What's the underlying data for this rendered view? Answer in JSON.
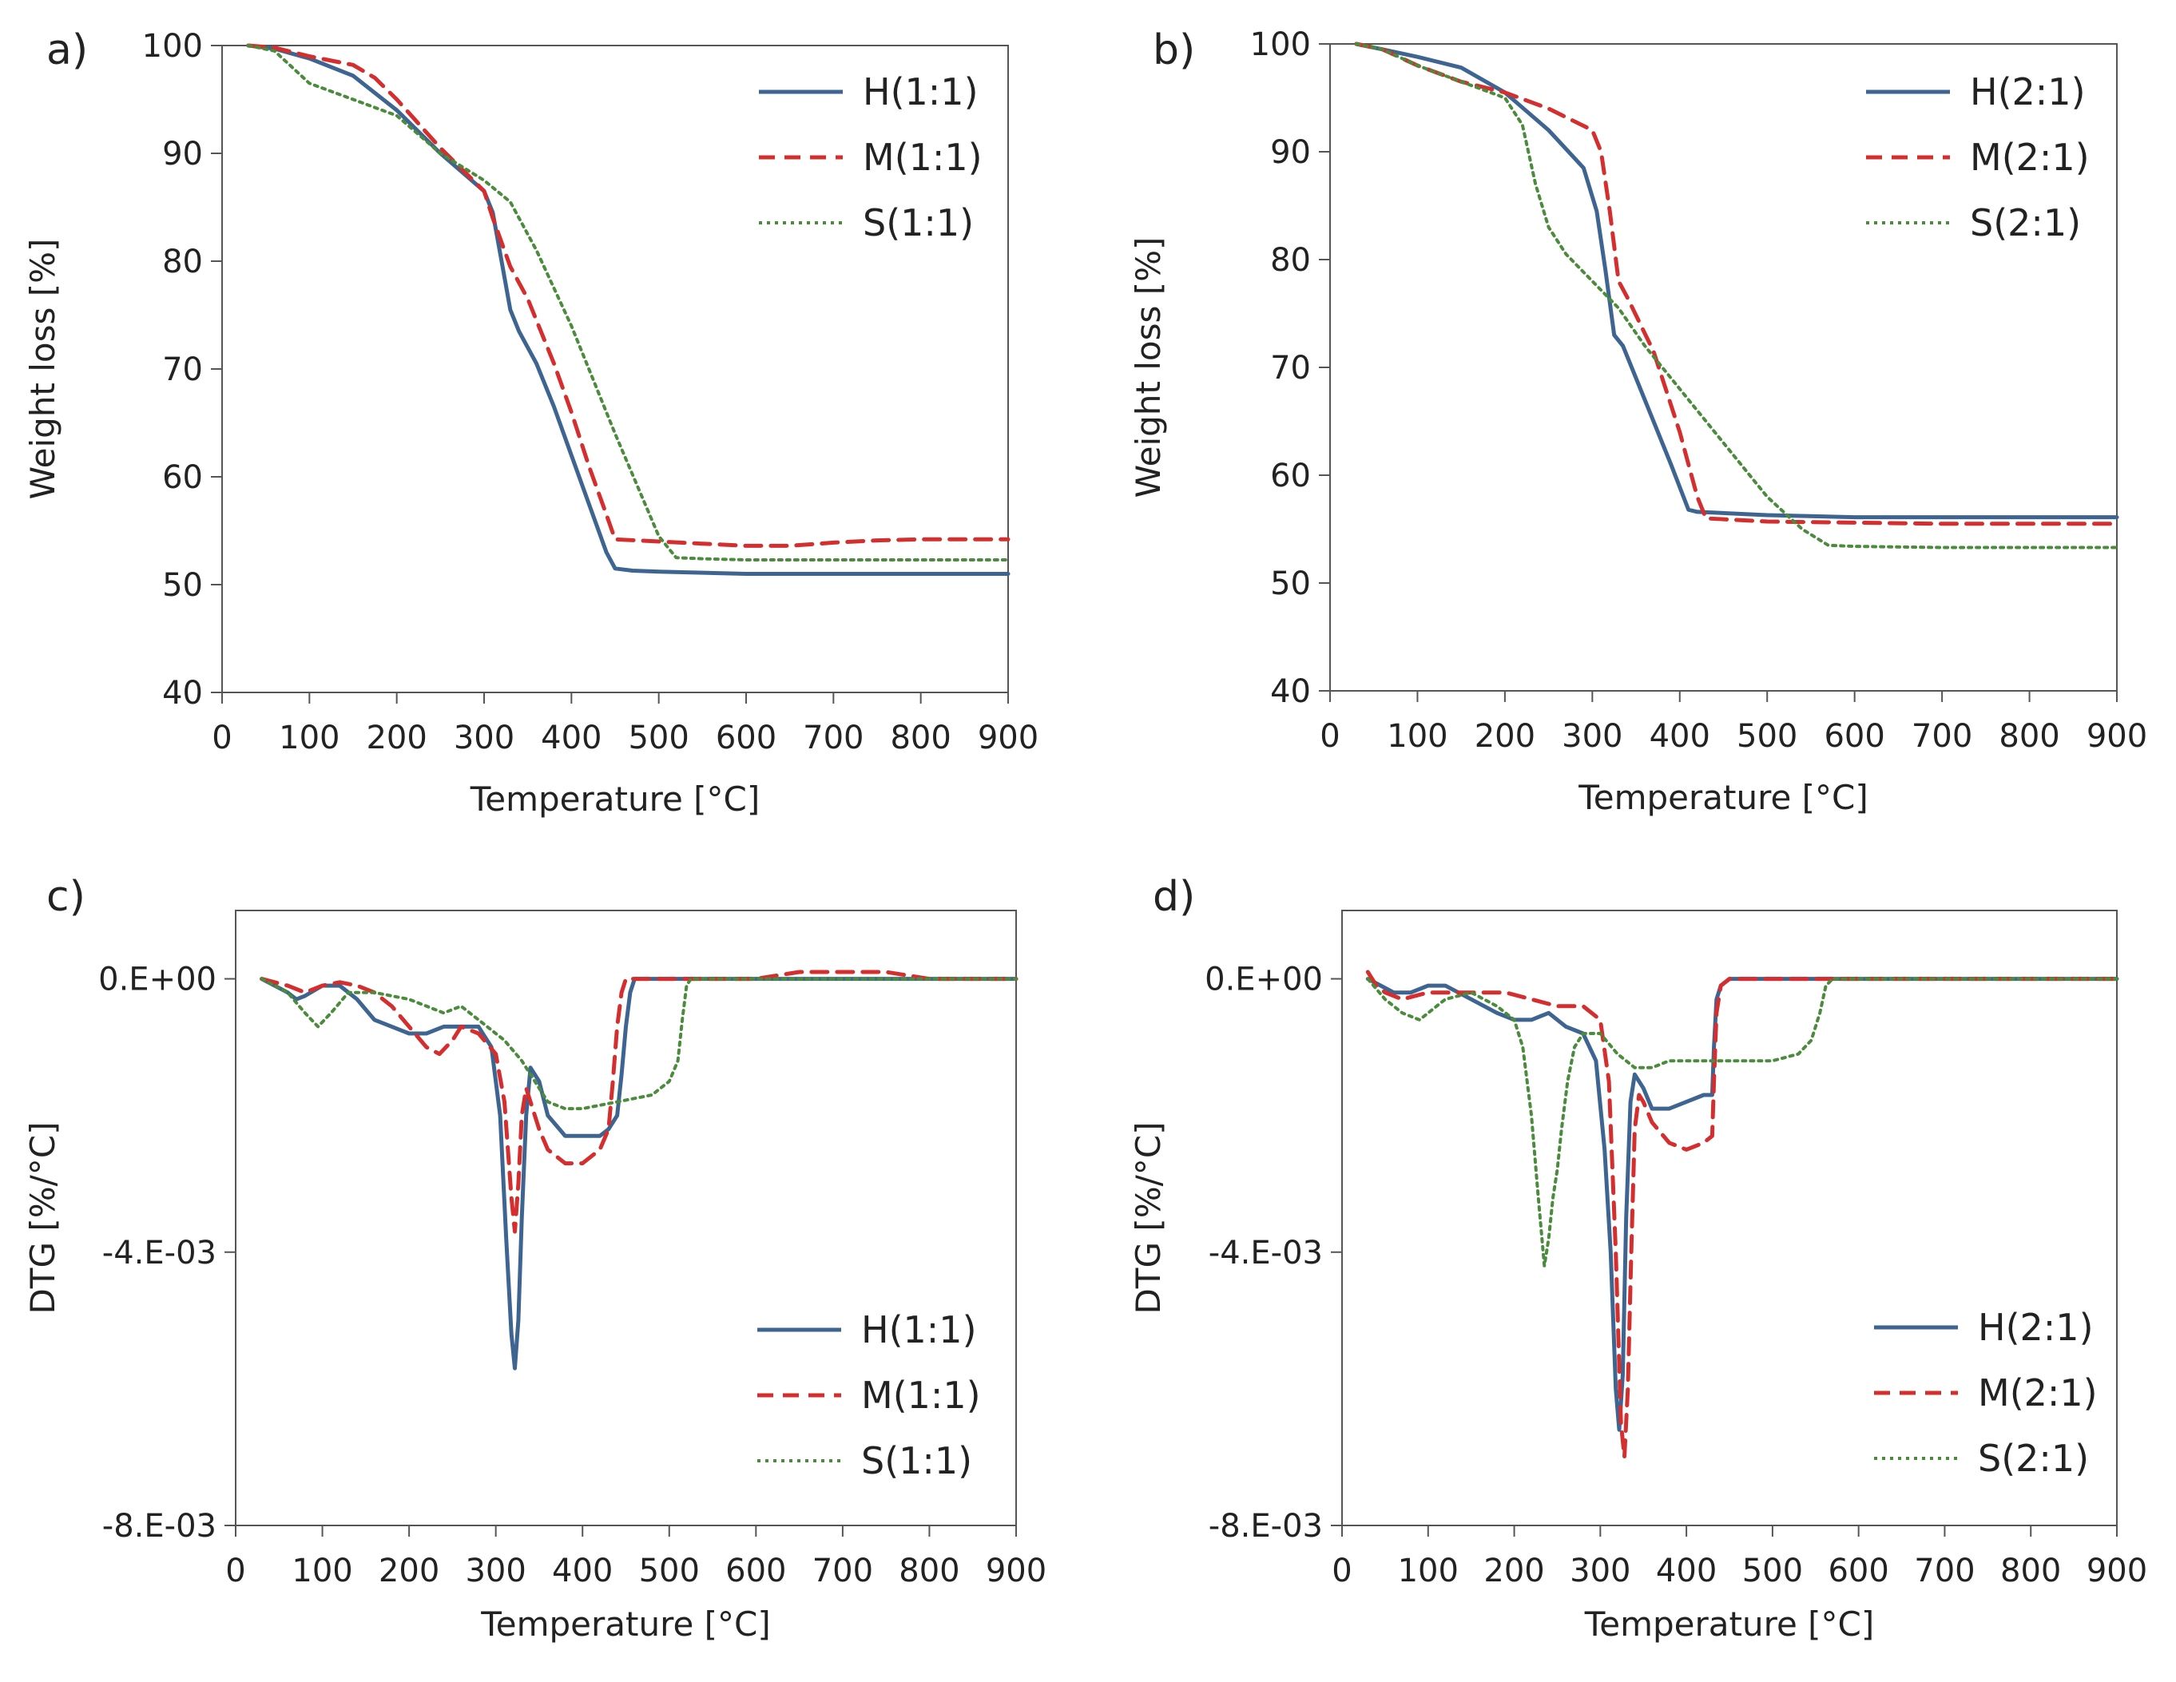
{
  "chart_data": [
    {
      "panel_label": "a)",
      "type": "line",
      "xlabel": "Temperature [°C]",
      "ylabel": "Weight loss [%]",
      "xlim": [
        0,
        900
      ],
      "ylim": [
        40,
        100
      ],
      "xticks": [
        0,
        100,
        200,
        300,
        400,
        500,
        600,
        700,
        800,
        900
      ],
      "yticks": [
        40,
        50,
        60,
        70,
        80,
        90,
        100
      ],
      "ytick_labels": [
        "40",
        "50",
        "60",
        "70",
        "80",
        "90",
        "100"
      ],
      "legend_position": "top-right",
      "series": [
        {
          "name": "H(1:1)",
          "style": "solid",
          "color": "#3e6591",
          "x": [
            30,
            60,
            100,
            150,
            200,
            250,
            300,
            310,
            320,
            330,
            340,
            360,
            380,
            400,
            420,
            440,
            450,
            470,
            500,
            600,
            700,
            800,
            900
          ],
          "y": [
            100,
            99.7,
            98.8,
            97.2,
            94.0,
            90.0,
            86.5,
            84.5,
            80.0,
            75.5,
            73.5,
            70.5,
            66.5,
            62.0,
            57.5,
            53.0,
            51.5,
            51.3,
            51.2,
            51.0,
            51.0,
            51.0,
            51.0
          ]
        },
        {
          "name": "M(1:1)",
          "style": "dashed",
          "color": "#d42e2e",
          "x": [
            30,
            60,
            100,
            150,
            175,
            200,
            250,
            300,
            310,
            330,
            350,
            380,
            400,
            420,
            440,
            450,
            500,
            550,
            600,
            650,
            700,
            750,
            800,
            900
          ],
          "y": [
            100,
            99.8,
            99.0,
            98.2,
            97.0,
            95.0,
            90.5,
            86.5,
            84.0,
            79.5,
            76.5,
            70.5,
            66.0,
            61.0,
            56.5,
            54.2,
            54.0,
            53.8,
            53.6,
            53.6,
            53.9,
            54.1,
            54.2,
            54.2
          ]
        },
        {
          "name": "S(1:1)",
          "style": "dotted",
          "color": "#4a8b3c",
          "x": [
            30,
            60,
            80,
            100,
            150,
            200,
            250,
            300,
            330,
            360,
            400,
            450,
            500,
            520,
            550,
            600,
            700,
            800,
            900
          ],
          "y": [
            100,
            99.5,
            98.0,
            96.5,
            95.0,
            93.5,
            90.0,
            87.5,
            85.5,
            81.0,
            74.0,
            64.0,
            54.5,
            52.5,
            52.4,
            52.3,
            52.3,
            52.3,
            52.3
          ]
        }
      ]
    },
    {
      "panel_label": "b)",
      "type": "line",
      "xlabel": "Temperature [°C]",
      "ylabel": "Weight loss [%]",
      "xlim": [
        0,
        900
      ],
      "ylim": [
        40,
        100
      ],
      "xticks": [
        0,
        100,
        200,
        300,
        400,
        500,
        600,
        700,
        800,
        900
      ],
      "yticks": [
        40,
        50,
        60,
        70,
        80,
        90,
        100
      ],
      "ytick_labels": [
        "40",
        "50",
        "60",
        "70",
        "80",
        "90",
        "100"
      ],
      "legend_position": "top-right",
      "series": [
        {
          "name": "H(2:1)",
          "style": "solid",
          "color": "#3e6591",
          "x": [
            30,
            60,
            100,
            150,
            200,
            250,
            290,
            305,
            315,
            325,
            335,
            360,
            390,
            410,
            420,
            500,
            600,
            700,
            800,
            900
          ],
          "y": [
            100,
            99.5,
            98.8,
            97.8,
            95.5,
            92.0,
            88.5,
            84.5,
            79.0,
            73.0,
            72.0,
            67.0,
            61.0,
            56.8,
            56.6,
            56.3,
            56.1,
            56.1,
            56.1,
            56.1
          ]
        },
        {
          "name": "M(2:1)",
          "style": "dashed",
          "color": "#d42e2e",
          "x": [
            30,
            60,
            100,
            150,
            200,
            250,
            300,
            310,
            320,
            330,
            340,
            370,
            400,
            420,
            430,
            500,
            600,
            700,
            800,
            900
          ],
          "y": [
            100,
            99.5,
            98.0,
            96.5,
            95.5,
            94.0,
            92.0,
            90.0,
            84.5,
            78.0,
            76.5,
            71.5,
            64.0,
            58.0,
            56.0,
            55.7,
            55.6,
            55.5,
            55.5,
            55.5
          ]
        },
        {
          "name": "S(2:1)",
          "style": "dotted",
          "color": "#4a8b3c",
          "x": [
            30,
            60,
            100,
            150,
            200,
            220,
            235,
            250,
            270,
            300,
            330,
            360,
            400,
            450,
            500,
            540,
            570,
            600,
            700,
            800,
            900
          ],
          "y": [
            100,
            99.5,
            98.0,
            96.5,
            95.0,
            92.5,
            87.0,
            83.0,
            80.5,
            78.0,
            75.5,
            72.0,
            68.0,
            63.0,
            58.0,
            55.0,
            53.5,
            53.4,
            53.3,
            53.3,
            53.3
          ]
        }
      ]
    },
    {
      "panel_label": "c)",
      "type": "line",
      "xlabel": "Temperature [°C]",
      "ylabel": "DTG [%/°C]",
      "xlim": [
        0,
        900
      ],
      "ylim": [
        -0.008,
        0.001
      ],
      "xticks": [
        0,
        100,
        200,
        300,
        400,
        500,
        600,
        700,
        800,
        900
      ],
      "yticks": [
        0,
        -0.004,
        -0.008
      ],
      "ytick_labels": [
        "0.E+00",
        "-4.E-03",
        "-8.E-03"
      ],
      "legend_position": "bottom-right",
      "series": [
        {
          "name": "H(1:1)",
          "style": "solid",
          "color": "#3e6591",
          "x": [
            30,
            45,
            60,
            70,
            80,
            100,
            120,
            140,
            160,
            180,
            200,
            220,
            240,
            260,
            280,
            295,
            305,
            312,
            318,
            322,
            326,
            330,
            335,
            340,
            350,
            360,
            380,
            400,
            420,
            430,
            440,
            445,
            450,
            455,
            460,
            480,
            500,
            600,
            700,
            800,
            900
          ],
          "y": [
            0,
            -0.0001,
            -0.0002,
            -0.0003,
            -0.00025,
            -0.0001,
            -0.0001,
            -0.0003,
            -0.0006,
            -0.0007,
            -0.0008,
            -0.0008,
            -0.0007,
            -0.0007,
            -0.0007,
            -0.001,
            -0.002,
            -0.0038,
            -0.0052,
            -0.0057,
            -0.005,
            -0.0035,
            -0.002,
            -0.0013,
            -0.0015,
            -0.002,
            -0.0023,
            -0.0023,
            -0.0023,
            -0.0022,
            -0.002,
            -0.0014,
            -0.0007,
            -0.0002,
            0,
            0,
            0,
            0,
            0,
            0,
            0
          ]
        },
        {
          "name": "M(1:1)",
          "style": "dashed",
          "color": "#d42e2e",
          "x": [
            30,
            60,
            80,
            100,
            120,
            140,
            160,
            180,
            200,
            220,
            235,
            250,
            260,
            280,
            300,
            310,
            318,
            322,
            326,
            330,
            335,
            340,
            350,
            360,
            380,
            400,
            420,
            430,
            435,
            440,
            445,
            450,
            460,
            500,
            600,
            650,
            700,
            750,
            800,
            900
          ],
          "y": [
            0,
            -0.0001,
            -0.0002,
            -0.0001,
            -5e-05,
            -0.0001,
            -0.0002,
            -0.0004,
            -0.0007,
            -0.001,
            -0.0011,
            -0.0009,
            -0.0007,
            -0.0008,
            -0.0011,
            -0.0018,
            -0.0032,
            -0.0037,
            -0.003,
            -0.002,
            -0.0016,
            -0.0018,
            -0.0022,
            -0.0025,
            -0.0027,
            -0.0027,
            -0.0025,
            -0.0022,
            -0.0015,
            -0.0007,
            -0.0002,
            0,
            0,
            0,
            0,
            0.0001,
            0.0001,
            0.0001,
            0,
            0
          ]
        },
        {
          "name": "S(1:1)",
          "style": "dotted",
          "color": "#4a8b3c",
          "x": [
            30,
            60,
            80,
            95,
            110,
            130,
            160,
            200,
            240,
            260,
            270,
            290,
            310,
            330,
            345,
            360,
            380,
            400,
            440,
            480,
            500,
            510,
            515,
            520,
            525,
            600,
            700,
            800,
            900
          ],
          "y": [
            0,
            -0.0002,
            -0.0005,
            -0.0007,
            -0.0005,
            -0.0002,
            -0.0002,
            -0.0003,
            -0.0005,
            -0.0004,
            -0.0005,
            -0.0007,
            -0.0009,
            -0.0012,
            -0.0015,
            -0.0018,
            -0.0019,
            -0.0019,
            -0.0018,
            -0.0017,
            -0.0015,
            -0.0012,
            -0.0006,
            -0.0001,
            0,
            0,
            0,
            0,
            0
          ]
        }
      ]
    },
    {
      "panel_label": "d)",
      "type": "line",
      "xlabel": "Temperature [°C]",
      "ylabel": "DTG [%/°C]",
      "xlim": [
        0,
        900
      ],
      "ylim": [
        -0.008,
        0.001
      ],
      "xticks": [
        0,
        100,
        200,
        300,
        400,
        500,
        600,
        700,
        800,
        900
      ],
      "yticks": [
        0,
        -0.004,
        -0.008
      ],
      "ytick_labels": [
        "0.E+00",
        "-4.E-03",
        "-8.E-03"
      ],
      "legend_position": "bottom-right",
      "series": [
        {
          "name": "H(2:1)",
          "style": "solid",
          "color": "#3e6591",
          "x": [
            30,
            45,
            60,
            80,
            100,
            120,
            150,
            180,
            200,
            220,
            240,
            260,
            280,
            295,
            305,
            312,
            318,
            322,
            326,
            330,
            335,
            340,
            350,
            360,
            380,
            400,
            420,
            430,
            432,
            435,
            440,
            450,
            500,
            600,
            700,
            800,
            900
          ],
          "y": [
            0,
            -0.0001,
            -0.0002,
            -0.0002,
            -0.0001,
            -0.0001,
            -0.0003,
            -0.0005,
            -0.0006,
            -0.0006,
            -0.0005,
            -0.0007,
            -0.0008,
            -0.0012,
            -0.0025,
            -0.004,
            -0.006,
            -0.0066,
            -0.0058,
            -0.0035,
            -0.0018,
            -0.0014,
            -0.0016,
            -0.0019,
            -0.0019,
            -0.0018,
            -0.0017,
            -0.0017,
            -0.001,
            -0.0003,
            -0.0001,
            0,
            0,
            0,
            0,
            0,
            0
          ]
        },
        {
          "name": "M(2:1)",
          "style": "dashed",
          "color": "#d42e2e",
          "x": [
            30,
            40,
            50,
            70,
            100,
            130,
            160,
            190,
            220,
            250,
            280,
            300,
            310,
            318,
            324,
            328,
            332,
            336,
            340,
            345,
            350,
            360,
            380,
            400,
            420,
            430,
            432,
            435,
            440,
            450,
            500,
            600,
            700,
            800,
            900
          ],
          "y": [
            0.0001,
            -0.0001,
            -0.0002,
            -0.0003,
            -0.0002,
            -0.0002,
            -0.0002,
            -0.0002,
            -0.0003,
            -0.0004,
            -0.0004,
            -0.0006,
            -0.0015,
            -0.004,
            -0.0065,
            -0.007,
            -0.006,
            -0.004,
            -0.0022,
            -0.0017,
            -0.0018,
            -0.0021,
            -0.0024,
            -0.0025,
            -0.0024,
            -0.0023,
            -0.0015,
            -0.0005,
            -0.0001,
            0,
            0,
            0,
            0,
            0,
            0
          ]
        },
        {
          "name": "S(2:1)",
          "style": "dotted",
          "color": "#4a8b3c",
          "x": [
            30,
            50,
            70,
            90,
            100,
            120,
            150,
            180,
            200,
            210,
            220,
            228,
            235,
            240,
            245,
            250,
            255,
            262,
            270,
            280,
            300,
            320,
            340,
            360,
            380,
            400,
            450,
            500,
            530,
            545,
            555,
            562,
            570,
            600,
            700,
            800,
            900
          ],
          "y": [
            0,
            -0.0003,
            -0.0005,
            -0.0006,
            -0.0005,
            -0.0003,
            -0.0002,
            -0.0004,
            -0.0006,
            -0.001,
            -0.002,
            -0.0032,
            -0.0042,
            -0.0038,
            -0.0032,
            -0.0028,
            -0.0022,
            -0.0015,
            -0.001,
            -0.0008,
            -0.0008,
            -0.0011,
            -0.0013,
            -0.0013,
            -0.0012,
            -0.0012,
            -0.0012,
            -0.0012,
            -0.0011,
            -0.0009,
            -0.0005,
            -0.0001,
            0,
            0,
            0,
            0,
            0
          ]
        }
      ]
    }
  ]
}
